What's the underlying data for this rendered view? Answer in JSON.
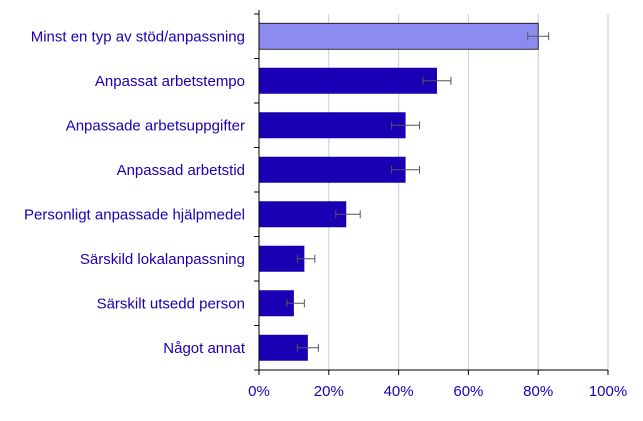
{
  "chart_data": {
    "type": "bar",
    "orientation": "horizontal",
    "categories": [
      "Minst en typ av stöd/anpassning",
      "Anpassat arbetstempo",
      "Anpassade arbetsuppgifter",
      "Anpassad arbetstid",
      "Personligt anpassade hjälpmedel",
      "Särskild lokalanpassning",
      "Särskilt utsedd person",
      "Något annat"
    ],
    "values": [
      80,
      51,
      42,
      42,
      25,
      13,
      10,
      14
    ],
    "error_low": [
      77,
      47,
      38,
      38,
      22,
      11,
      8,
      11
    ],
    "error_high": [
      83,
      55,
      46,
      46,
      29,
      16,
      13,
      17
    ],
    "x_ticks": [
      0,
      20,
      40,
      60,
      80,
      100
    ],
    "x_tick_labels": [
      "0%",
      "20%",
      "40%",
      "60%",
      "80%",
      "100%"
    ],
    "xlim": [
      0,
      100
    ],
    "grid": "vertical",
    "colors": {
      "highlight_bar": "#8c8cf0",
      "bar": "#1a00b4",
      "bar_outline": "#000000",
      "label_text": "#1a00b4",
      "gridline": "#c8c8e6",
      "axis": "#000000",
      "error_bar": "#555555"
    }
  }
}
